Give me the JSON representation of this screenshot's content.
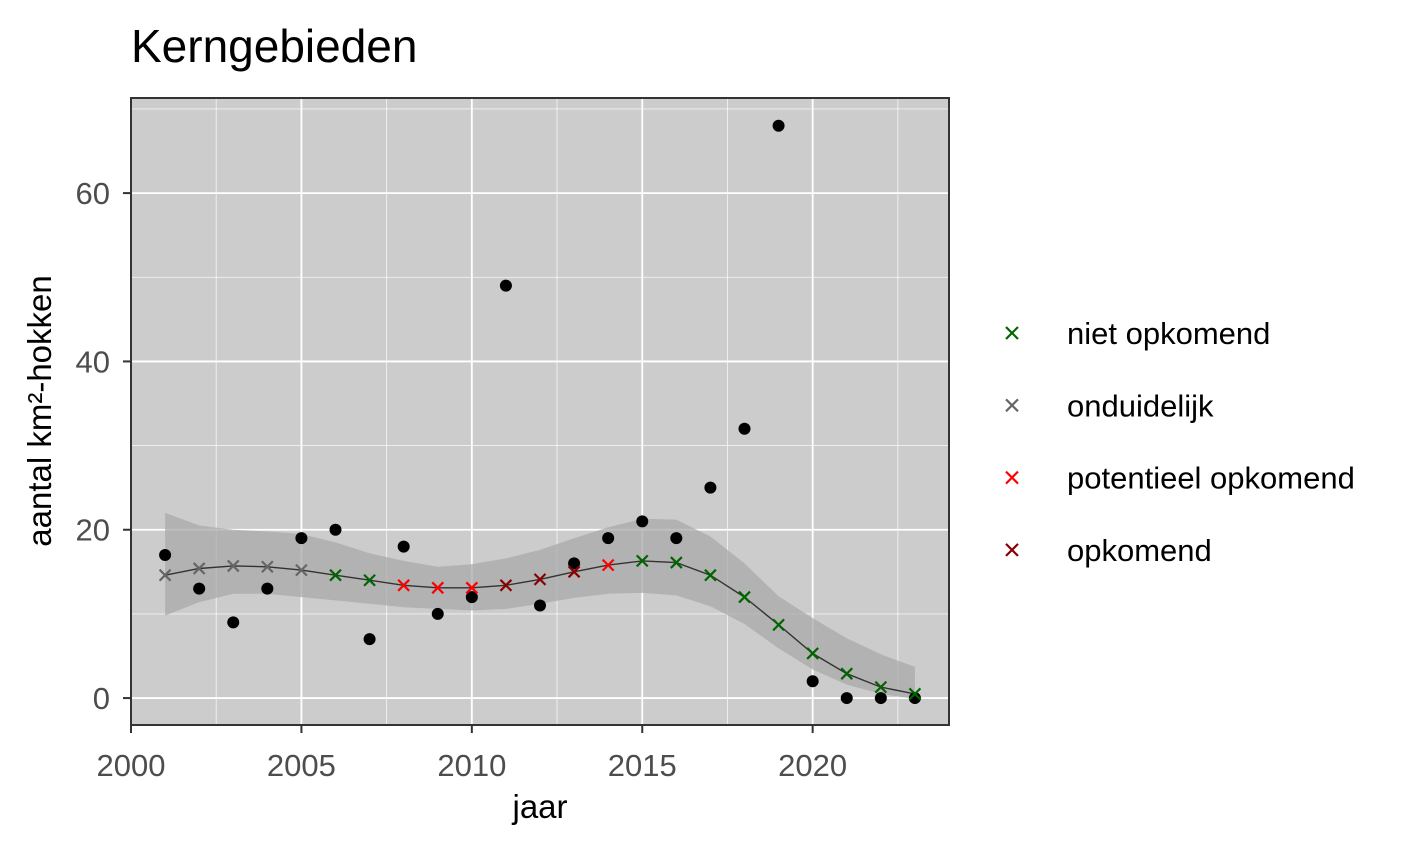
{
  "chart_data": {
    "type": "scatter",
    "title": "Kerngebieden",
    "xlabel": "jaar",
    "ylabel": "aantal km²-hokken",
    "xlim": [
      2000,
      2024
    ],
    "ylim": [
      -3.2,
      71.3
    ],
    "x_ticks": [
      2000,
      2005,
      2010,
      2015,
      2020
    ],
    "y_ticks": [
      0,
      20,
      40,
      60
    ],
    "x_tick_labels": [
      "2000",
      "2005",
      "2010",
      "2015",
      "2020"
    ],
    "y_tick_labels": [
      "0",
      "20",
      "40",
      "60"
    ],
    "grid": true,
    "legend_position": "right",
    "colors": {
      "panel_background": "#cccccc",
      "grid": "#ffffff",
      "ribbon": "#aaaaaa",
      "smooth_line": "#333333",
      "observed_points": "#000000"
    },
    "observed": {
      "x": [
        2001,
        2002,
        2003,
        2004,
        2005,
        2006,
        2007,
        2008,
        2009,
        2010,
        2011,
        2012,
        2013,
        2014,
        2015,
        2016,
        2017,
        2018,
        2019,
        2020,
        2021,
        2022,
        2023
      ],
      "y": [
        17,
        13,
        9,
        13,
        19,
        20,
        7,
        18,
        10,
        12,
        49,
        11,
        16,
        19,
        21,
        19,
        25,
        32,
        68,
        2,
        0,
        0,
        0
      ]
    },
    "smoothed": {
      "x": [
        2001,
        2002,
        2003,
        2004,
        2005,
        2006,
        2007,
        2008,
        2009,
        2010,
        2011,
        2012,
        2013,
        2014,
        2015,
        2016,
        2017,
        2018,
        2019,
        2020,
        2021,
        2022,
        2023
      ],
      "y": [
        14.6,
        15.4,
        15.7,
        15.6,
        15.2,
        14.6,
        14.0,
        13.4,
        13.1,
        13.1,
        13.4,
        14.1,
        15.0,
        15.8,
        16.3,
        16.1,
        14.6,
        12.0,
        8.7,
        5.3,
        2.9,
        1.3,
        0.5
      ],
      "lower": [
        9.8,
        11.4,
        12.4,
        12.4,
        12.0,
        11.6,
        11.2,
        10.8,
        10.6,
        10.4,
        10.6,
        11.2,
        11.9,
        12.4,
        12.5,
        12.2,
        10.9,
        8.8,
        5.9,
        3.4,
        1.6,
        0.5,
        -0.1
      ],
      "upper": [
        22.0,
        20.5,
        20.0,
        19.8,
        19.5,
        18.5,
        17.2,
        16.3,
        15.6,
        15.9,
        16.6,
        17.6,
        19.0,
        20.3,
        21.3,
        21.2,
        19.2,
        16.0,
        12.1,
        9.5,
        7.1,
        5.2,
        3.7
      ],
      "status": [
        "onduidelijk",
        "onduidelijk",
        "onduidelijk",
        "onduidelijk",
        "onduidelijk",
        "niet opkomend",
        "niet opkomend",
        "potentieel opkomend",
        "potentieel opkomend",
        "potentieel opkomend",
        "opkomend",
        "opkomend",
        "opkomend",
        "potentieel opkomend",
        "niet opkomend",
        "niet opkomend",
        "niet opkomend",
        "niet opkomend",
        "niet opkomend",
        "niet opkomend",
        "niet opkomend",
        "niet opkomend",
        "niet opkomend"
      ]
    },
    "legend": [
      {
        "label": "niet opkomend",
        "color": "#006400"
      },
      {
        "label": "onduidelijk",
        "color": "#666666"
      },
      {
        "label": "potentieel opkomend",
        "color": "#ff0000"
      },
      {
        "label": "opkomend",
        "color": "#8b0000"
      }
    ]
  }
}
